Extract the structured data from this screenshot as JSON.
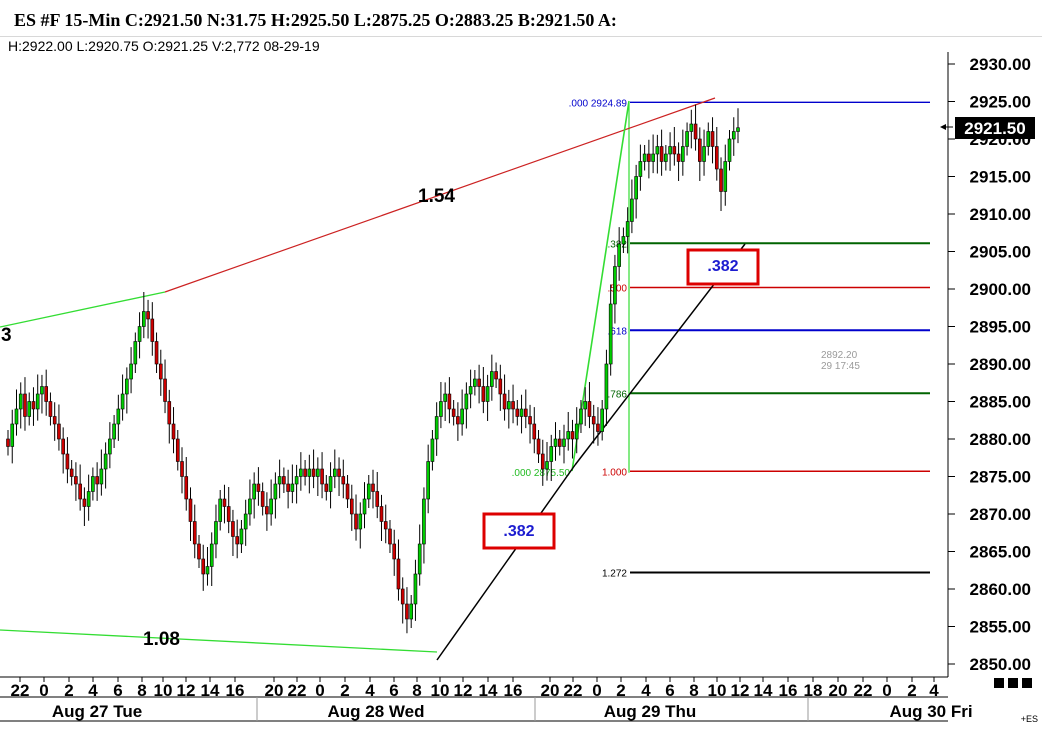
{
  "header": {
    "title": "ES #F 15-Min C:2921.50 N:31.75 H:2925.50 L:2875.25 O:2883.25 B:2921.50 A:",
    "subtitle": "H:2922.00  L:2920.75  O:2921.25  V:2,772  08-29-19"
  },
  "corner_label": "+ES",
  "chart_data": {
    "type": "candlestick",
    "ylim": [
      2848.5,
      2932.5
    ],
    "y_ticks": [
      "2930.00",
      "2925.00",
      "2920.00",
      "2915.00",
      "2910.00",
      "2905.00",
      "2900.00",
      "2895.00",
      "2890.00",
      "2885.00",
      "2880.00",
      "2875.00",
      "2870.00",
      "2865.00",
      "2860.00",
      "2855.00",
      "2850.00"
    ],
    "x_ticks": [
      "22",
      "0",
      "2",
      "4",
      "6",
      "8",
      "10",
      "12",
      "14",
      "16",
      "20",
      "22",
      "0",
      "2",
      "4",
      "6",
      "8",
      "10",
      "12",
      "14",
      "16",
      "20",
      "22",
      "0",
      "2",
      "4",
      "6",
      "8",
      "10",
      "12",
      "14",
      "16",
      "18",
      "20",
      "22",
      "0",
      "2",
      "4"
    ],
    "day_labels": [
      "Aug 27 Tue",
      "Aug 28 Wed",
      "Aug 29 Thu",
      "Aug 30 Fri"
    ],
    "current_price": "2921.50",
    "fib_levels": [
      {
        "ratio": ".000",
        "price": "2924.89",
        "value": 2924.89,
        "color": "#0000cc"
      },
      {
        "ratio": ".382",
        "value": 2906.1,
        "color": "#006400"
      },
      {
        "ratio": ".500",
        "value": 2900.2,
        "color": "#cc0000"
      },
      {
        "ratio": ".618",
        "value": 2894.5,
        "color": "#0000cc"
      },
      {
        "ratio": ".786",
        "value": 2886.1,
        "color": "#006400"
      },
      {
        "ratio": "1.000",
        "value": 2875.7,
        "color": "#cc0000"
      },
      {
        "ratio": "1.272",
        "value": 2862.2,
        "color": "#000000"
      }
    ],
    "fib_base_label": ".000 2875.50",
    "annotations": {
      "ratio_upper": "1.54",
      "ratio_lower": "1.08",
      "ratio_left_partial": "3",
      "box_lower": ".382",
      "box_upper": ".382",
      "cursor_price": "2892.20",
      "cursor_time": "29 17:45"
    },
    "colors": {
      "up": "#00cc00",
      "down": "#cc0000",
      "fib_line": "#33dd33",
      "trend": "#000000"
    }
  }
}
